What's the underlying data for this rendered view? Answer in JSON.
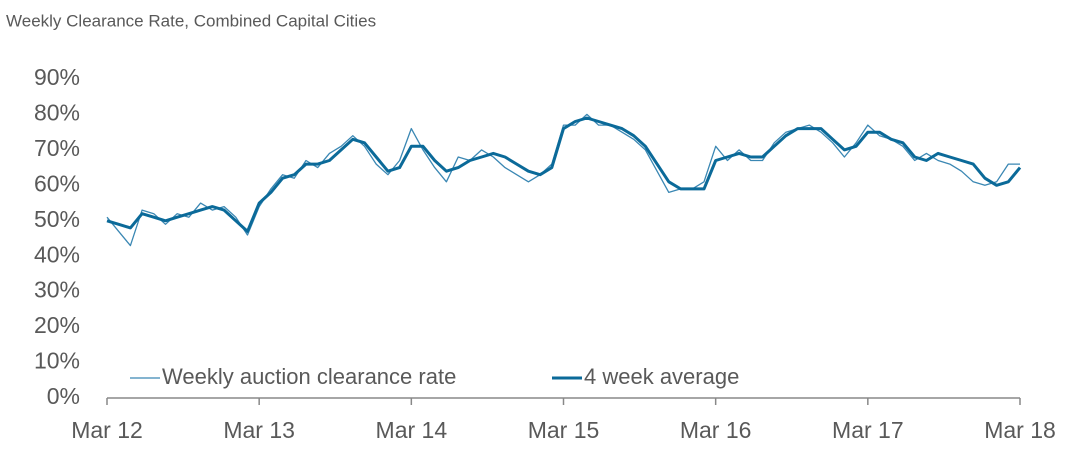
{
  "chart_data": {
    "type": "line",
    "title": "Weekly Clearance Rate, Combined Capital Cities",
    "categories": [
      "Mar 12",
      null,
      null,
      null,
      null,
      null,
      null,
      null,
      null,
      null,
      null,
      null,
      null,
      "Mar 13",
      null,
      null,
      null,
      null,
      null,
      null,
      null,
      null,
      null,
      null,
      null,
      null,
      "Mar 14",
      null,
      null,
      null,
      null,
      null,
      null,
      null,
      null,
      null,
      null,
      null,
      null,
      "Mar 15",
      null,
      null,
      null,
      null,
      null,
      null,
      null,
      null,
      null,
      null,
      null,
      null,
      "Mar 16",
      null,
      null,
      null,
      null,
      null,
      null,
      null,
      null,
      null,
      null,
      null,
      null,
      "Mar 17",
      null,
      null,
      null,
      null,
      null,
      null,
      null,
      null,
      null,
      null,
      null,
      null,
      "Mar 18"
    ],
    "series": [
      {
        "name": "Weekly auction clearance rate",
        "color": "#3a87b3",
        "width": 1.3,
        "values": [
          51,
          47,
          43,
          53,
          52,
          49,
          52,
          51,
          55,
          53,
          54,
          51,
          46,
          54,
          59,
          63,
          62,
          67,
          65,
          69,
          71,
          74,
          71,
          66,
          63,
          67,
          76,
          70,
          65,
          61,
          68,
          67,
          70,
          68,
          65,
          63,
          61,
          63,
          66,
          77,
          77,
          80,
          77,
          77,
          75,
          73,
          70,
          64,
          58,
          59,
          59,
          61,
          71,
          67,
          70,
          67,
          67,
          72,
          75,
          76,
          77,
          75,
          72,
          68,
          72,
          77,
          74,
          73,
          71,
          67,
          69,
          67,
          66,
          64,
          61,
          60,
          61,
          66,
          66
        ]
      },
      {
        "name": "4 week average",
        "color": "#0b6a99",
        "width": 3,
        "values": [
          50,
          49,
          48,
          52,
          51,
          50,
          51,
          52,
          53,
          54,
          53,
          50,
          47,
          55,
          58,
          62,
          63,
          66,
          66,
          67,
          70,
          73,
          72,
          68,
          64,
          65,
          71,
          71,
          67,
          64,
          65,
          67,
          68,
          69,
          68,
          66,
          64,
          63,
          65,
          76,
          78,
          79,
          78,
          77,
          76,
          74,
          71,
          66,
          61,
          59,
          59,
          59,
          67,
          68,
          69,
          68,
          68,
          71,
          74,
          76,
          76,
          76,
          73,
          70,
          71,
          75,
          75,
          73,
          72,
          68,
          67,
          69,
          68,
          67,
          66,
          62,
          60,
          61,
          65
        ]
      }
    ],
    "ylim": [
      0,
      90
    ],
    "yticks": [
      {
        "value": 0,
        "label": "0%"
      },
      {
        "value": 10,
        "label": "10%"
      },
      {
        "value": 20,
        "label": "20%"
      },
      {
        "value": 30,
        "label": "30%"
      },
      {
        "value": 40,
        "label": "40%"
      },
      {
        "value": 50,
        "label": "50%"
      },
      {
        "value": 60,
        "label": "60%"
      },
      {
        "value": 70,
        "label": "70%"
      },
      {
        "value": 80,
        "label": "80%"
      },
      {
        "value": 90,
        "label": "90%"
      }
    ],
    "grid": false,
    "legend": "bottom-left"
  }
}
